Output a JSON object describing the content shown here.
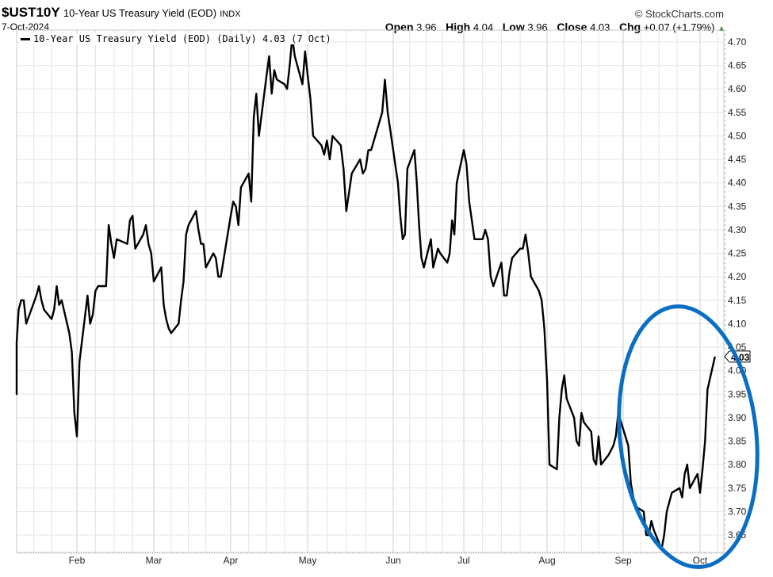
{
  "header": {
    "symbol": "$UST10Y",
    "description": "10-Year US Treasury Yield (EOD)",
    "exchange": "INDX",
    "date": "7-Oct-2024",
    "copyright": "© StockCharts.com",
    "ohlc": {
      "open_label": "Open",
      "open": "3.96",
      "high_label": "High",
      "high": "4.04",
      "low_label": "Low",
      "low": "3.96",
      "close_label": "Close",
      "close": "4.03",
      "chg_label": "Chg",
      "chg": "+0.07 (+1.79%)",
      "chg_icon": "up-triangle-icon"
    }
  },
  "legend": {
    "label": "10-Year US Treasury Yield (EOD) (Daily) 4.03 (7 Oct)"
  },
  "last_value_label": "4.03",
  "colors": {
    "line": "#000000",
    "grid": "#e4e4e4",
    "grid_month": "#cfcfcf",
    "annotation_ellipse": "#0a6fc2",
    "up": "#2a7a2a"
  },
  "chart_data": {
    "type": "line",
    "title": "$UST10Y 10-Year US Treasury Yield (EOD) INDX",
    "xlabel": "",
    "ylabel": "",
    "ylim": [
      3.61,
      4.72
    ],
    "y_ticks": [
      "4.70",
      "4.65",
      "4.60",
      "4.55",
      "4.50",
      "4.45",
      "4.40",
      "4.35",
      "4.30",
      "4.25",
      "4.20",
      "4.15",
      "4.10",
      "4.05",
      "4.00",
      "3.95",
      "3.90",
      "3.85",
      "3.80",
      "3.75",
      "3.70",
      "3.65"
    ],
    "x_ticks": [
      "Feb",
      "Mar",
      "Apr",
      "May",
      "Jun",
      "Jul",
      "Aug",
      "Sep",
      "Oct"
    ],
    "grid": true,
    "legend_position": "top-left",
    "annotation": "blue ellipse circling Sep–Oct rebound",
    "series": [
      {
        "name": "10-Year US Treasury Yield (EOD) (Daily)",
        "points": [
          [
            "Jan-02",
            4.0
          ],
          [
            "Jan-03",
            4.03
          ],
          [
            "Jan-04",
            3.97
          ],
          [
            "Jan-05",
            3.95
          ],
          [
            "Jan-08",
            4.06
          ],
          [
            "Jan-09",
            4.13
          ],
          [
            "Jan-10",
            4.15
          ],
          [
            "Jan-11",
            4.15
          ],
          [
            "Jan-12",
            4.1
          ],
          [
            "Jan-16",
            4.16
          ],
          [
            "Jan-17",
            4.18
          ],
          [
            "Jan-18",
            4.15
          ],
          [
            "Jan-19",
            4.13
          ],
          [
            "Jan-22",
            4.11
          ],
          [
            "Jan-23",
            4.13
          ],
          [
            "Jan-24",
            4.18
          ],
          [
            "Jan-25",
            4.14
          ],
          [
            "Jan-26",
            4.15
          ],
          [
            "Jan-29",
            4.08
          ],
          [
            "Jan-30",
            4.04
          ],
          [
            "Jan-31",
            3.91
          ],
          [
            "Feb-01",
            3.86
          ],
          [
            "Feb-02",
            4.02
          ],
          [
            "Feb-05",
            4.16
          ],
          [
            "Feb-06",
            4.1
          ],
          [
            "Feb-07",
            4.12
          ],
          [
            "Feb-08",
            4.17
          ],
          [
            "Feb-09",
            4.18
          ],
          [
            "Feb-12",
            4.18
          ],
          [
            "Feb-13",
            4.31
          ],
          [
            "Feb-14",
            4.27
          ],
          [
            "Feb-15",
            4.24
          ],
          [
            "Feb-16",
            4.28
          ],
          [
            "Feb-20",
            4.27
          ],
          [
            "Feb-21",
            4.32
          ],
          [
            "Feb-22",
            4.33
          ],
          [
            "Feb-23",
            4.26
          ],
          [
            "Feb-26",
            4.29
          ],
          [
            "Feb-27",
            4.31
          ],
          [
            "Feb-28",
            4.27
          ],
          [
            "Feb-29",
            4.25
          ],
          [
            "Mar-01",
            4.19
          ],
          [
            "Mar-04",
            4.22
          ],
          [
            "Mar-05",
            4.14
          ],
          [
            "Mar-06",
            4.11
          ],
          [
            "Mar-07",
            4.09
          ],
          [
            "Mar-08",
            4.08
          ],
          [
            "Mar-11",
            4.1
          ],
          [
            "Mar-12",
            4.15
          ],
          [
            "Mar-13",
            4.19
          ],
          [
            "Mar-14",
            4.29
          ],
          [
            "Mar-15",
            4.31
          ],
          [
            "Mar-18",
            4.34
          ],
          [
            "Mar-19",
            4.3
          ],
          [
            "Mar-20",
            4.27
          ],
          [
            "Mar-21",
            4.27
          ],
          [
            "Mar-22",
            4.22
          ],
          [
            "Mar-25",
            4.25
          ],
          [
            "Mar-26",
            4.24
          ],
          [
            "Mar-27",
            4.2
          ],
          [
            "Mar-28",
            4.2
          ],
          [
            "Apr-01",
            4.33
          ],
          [
            "Apr-02",
            4.36
          ],
          [
            "Apr-03",
            4.35
          ],
          [
            "Apr-04",
            4.31
          ],
          [
            "Apr-05",
            4.39
          ],
          [
            "Apr-08",
            4.42
          ],
          [
            "Apr-09",
            4.36
          ],
          [
            "Apr-10",
            4.54
          ],
          [
            "Apr-11",
            4.59
          ],
          [
            "Apr-12",
            4.5
          ],
          [
            "Apr-15",
            4.63
          ],
          [
            "Apr-16",
            4.67
          ],
          [
            "Apr-17",
            4.59
          ],
          [
            "Apr-18",
            4.64
          ],
          [
            "Apr-19",
            4.62
          ],
          [
            "Apr-22",
            4.61
          ],
          [
            "Apr-23",
            4.6
          ],
          [
            "Apr-24",
            4.65
          ],
          [
            "Apr-25",
            4.71
          ],
          [
            "Apr-26",
            4.67
          ],
          [
            "Apr-29",
            4.61
          ],
          [
            "Apr-30",
            4.68
          ],
          [
            "May-01",
            4.63
          ],
          [
            "May-02",
            4.58
          ],
          [
            "May-03",
            4.5
          ],
          [
            "May-06",
            4.48
          ],
          [
            "May-07",
            4.46
          ],
          [
            "May-08",
            4.49
          ],
          [
            "May-09",
            4.45
          ],
          [
            "May-10",
            4.5
          ],
          [
            "May-13",
            4.48
          ],
          [
            "May-14",
            4.43
          ],
          [
            "May-15",
            4.34
          ],
          [
            "May-16",
            4.38
          ],
          [
            "May-17",
            4.42
          ],
          [
            "May-20",
            4.45
          ],
          [
            "May-21",
            4.42
          ],
          [
            "May-22",
            4.43
          ],
          [
            "May-23",
            4.47
          ],
          [
            "May-24",
            4.47
          ],
          [
            "May-28",
            4.55
          ],
          [
            "May-29",
            4.62
          ],
          [
            "May-30",
            4.55
          ],
          [
            "May-31",
            4.51
          ],
          [
            "Jun-03",
            4.4
          ],
          [
            "Jun-04",
            4.33
          ],
          [
            "Jun-05",
            4.28
          ],
          [
            "Jun-06",
            4.29
          ],
          [
            "Jun-07",
            4.43
          ],
          [
            "Jun-10",
            4.47
          ],
          [
            "Jun-11",
            4.4
          ],
          [
            "Jun-12",
            4.31
          ],
          [
            "Jun-13",
            4.24
          ],
          [
            "Jun-14",
            4.22
          ],
          [
            "Jun-17",
            4.28
          ],
          [
            "Jun-18",
            4.22
          ],
          [
            "Jun-20",
            4.26
          ],
          [
            "Jun-21",
            4.25
          ],
          [
            "Jun-24",
            4.23
          ],
          [
            "Jun-25",
            4.25
          ],
          [
            "Jun-26",
            4.32
          ],
          [
            "Jun-27",
            4.29
          ],
          [
            "Jun-28",
            4.4
          ],
          [
            "Jul-01",
            4.47
          ],
          [
            "Jul-02",
            4.44
          ],
          [
            "Jul-03",
            4.36
          ],
          [
            "Jul-05",
            4.28
          ],
          [
            "Jul-08",
            4.28
          ],
          [
            "Jul-09",
            4.3
          ],
          [
            "Jul-10",
            4.28
          ],
          [
            "Jul-11",
            4.2
          ],
          [
            "Jul-12",
            4.18
          ],
          [
            "Jul-15",
            4.23
          ],
          [
            "Jul-16",
            4.16
          ],
          [
            "Jul-17",
            4.16
          ],
          [
            "Jul-18",
            4.21
          ],
          [
            "Jul-19",
            4.24
          ],
          [
            "Jul-22",
            4.26
          ],
          [
            "Jul-23",
            4.26
          ],
          [
            "Jul-24",
            4.29
          ],
          [
            "Jul-25",
            4.25
          ],
          [
            "Jul-26",
            4.2
          ],
          [
            "Jul-29",
            4.17
          ],
          [
            "Jul-30",
            4.15
          ],
          [
            "Jul-31",
            4.09
          ],
          [
            "Aug-01",
            3.98
          ],
          [
            "Aug-02",
            3.8
          ],
          [
            "Aug-05",
            3.79
          ],
          [
            "Aug-06",
            3.9
          ],
          [
            "Aug-07",
            3.96
          ],
          [
            "Aug-08",
            3.99
          ],
          [
            "Aug-09",
            3.94
          ],
          [
            "Aug-12",
            3.9
          ],
          [
            "Aug-13",
            3.85
          ],
          [
            "Aug-14",
            3.84
          ],
          [
            "Aug-15",
            3.91
          ],
          [
            "Aug-16",
            3.89
          ],
          [
            "Aug-19",
            3.87
          ],
          [
            "Aug-20",
            3.81
          ],
          [
            "Aug-21",
            3.8
          ],
          [
            "Aug-22",
            3.86
          ],
          [
            "Aug-23",
            3.8
          ],
          [
            "Aug-26",
            3.82
          ],
          [
            "Aug-27",
            3.83
          ],
          [
            "Aug-28",
            3.84
          ],
          [
            "Aug-29",
            3.86
          ],
          [
            "Aug-30",
            3.91
          ],
          [
            "Sep-03",
            3.84
          ],
          [
            "Sep-04",
            3.76
          ],
          [
            "Sep-05",
            3.73
          ],
          [
            "Sep-06",
            3.71
          ],
          [
            "Sep-09",
            3.7
          ],
          [
            "Sep-10",
            3.65
          ],
          [
            "Sep-11",
            3.65
          ],
          [
            "Sep-12",
            3.68
          ],
          [
            "Sep-13",
            3.66
          ],
          [
            "Sep-16",
            3.62
          ],
          [
            "Sep-17",
            3.65
          ],
          [
            "Sep-18",
            3.7
          ],
          [
            "Sep-19",
            3.72
          ],
          [
            "Sep-20",
            3.74
          ],
          [
            "Sep-23",
            3.75
          ],
          [
            "Sep-24",
            3.73
          ],
          [
            "Sep-25",
            3.78
          ],
          [
            "Sep-26",
            3.8
          ],
          [
            "Sep-27",
            3.75
          ],
          [
            "Sep-30",
            3.78
          ],
          [
            "Oct-01",
            3.74
          ],
          [
            "Oct-02",
            3.79
          ],
          [
            "Oct-03",
            3.85
          ],
          [
            "Oct-04",
            3.96
          ],
          [
            "Oct-07",
            4.03
          ]
        ]
      }
    ]
  }
}
